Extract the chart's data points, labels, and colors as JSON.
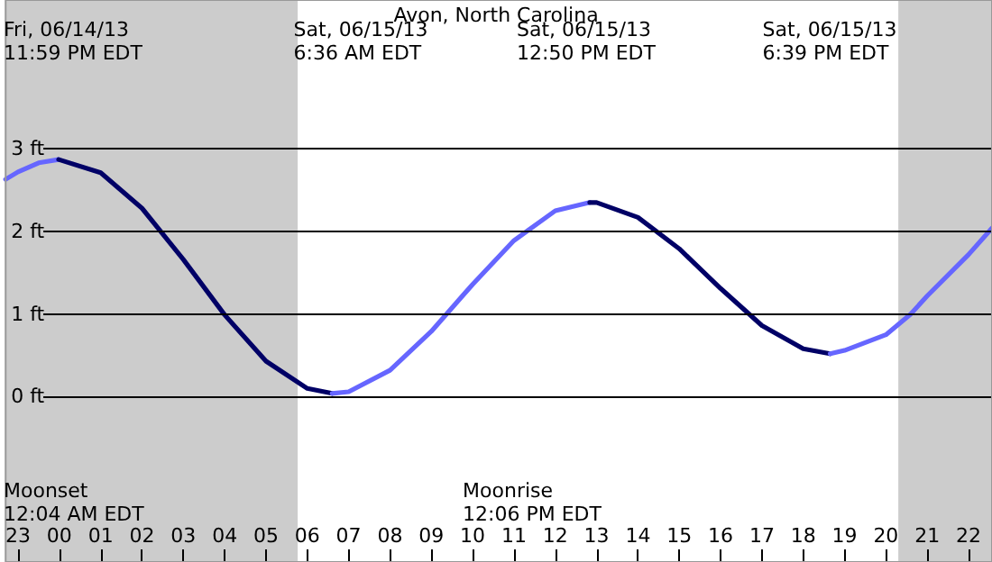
{
  "chart_data": {
    "type": "line",
    "title": "Avon, North Carolina",
    "xlim": [
      "--06-14T22:42",
      "--06-15T22:34"
    ],
    "ylim": [
      -2,
      4.8
    ],
    "xticks": [
      {
        "value": "--06-14T23:00",
        "label": "23"
      },
      {
        "value": "--06-15T00:00",
        "label": "00"
      },
      {
        "value": "--06-15T01:00",
        "label": "01"
      },
      {
        "value": "--06-15T02:00",
        "label": "02"
      },
      {
        "value": "--06-15T03:00",
        "label": "03"
      },
      {
        "value": "--06-15T04:00",
        "label": "04"
      },
      {
        "value": "--06-15T05:00",
        "label": "05"
      },
      {
        "value": "--06-15T06:00",
        "label": "06"
      },
      {
        "value": "--06-15T07:00",
        "label": "07"
      },
      {
        "value": "--06-15T08:00",
        "label": "08"
      },
      {
        "value": "--06-15T09:00",
        "label": "09"
      },
      {
        "value": "--06-15T10:00",
        "label": "10"
      },
      {
        "value": "--06-15T11:00",
        "label": "11"
      },
      {
        "value": "--06-15T12:00",
        "label": "12"
      },
      {
        "value": "--06-15T13:00",
        "label": "13"
      },
      {
        "value": "--06-15T14:00",
        "label": "14"
      },
      {
        "value": "--06-15T15:00",
        "label": "15"
      },
      {
        "value": "--06-15T16:00",
        "label": "16"
      },
      {
        "value": "--06-15T17:00",
        "label": "17"
      },
      {
        "value": "--06-15T18:00",
        "label": "18"
      },
      {
        "value": "--06-15T19:00",
        "label": "19"
      },
      {
        "value": "--06-15T20:00",
        "label": "20"
      },
      {
        "value": "--06-15T21:00",
        "label": "21"
      },
      {
        "value": "--06-15T22:00",
        "label": "22"
      }
    ],
    "yticks": [
      {
        "value": 0,
        "label": "0 ft"
      },
      {
        "value": 1,
        "label": "1 ft"
      },
      {
        "value": 2,
        "label": "2 ft"
      },
      {
        "value": 3,
        "label": "3 ft"
      }
    ],
    "grid": "y",
    "marker": "none",
    "line_style": "solid",
    "series": [
      {
        "color": "#6666ff",
        "x": [
          "--06-14T22:42",
          "--06-14T23:00",
          "--06-14T23:30",
          "--06-14T23:59"
        ],
        "values": [
          2.63,
          2.72,
          2.83,
          2.87
        ]
      },
      {
        "color": "#000066",
        "x": [
          "--06-14T23:59",
          "--06-15T01:00",
          "--06-15T02:00",
          "--06-15T03:00",
          "--06-15T04:00",
          "--06-15T05:00",
          "--06-15T06:00",
          "--06-15T06:36"
        ],
        "values": [
          2.87,
          2.71,
          2.28,
          1.66,
          0.99,
          0.43,
          0.1,
          0.04
        ]
      },
      {
        "color": "#6666ff",
        "x": [
          "--06-15T06:36",
          "--06-15T07:00",
          "--06-15T08:00",
          "--06-15T09:00",
          "--06-15T10:00",
          "--06-15T11:00",
          "--06-15T12:00",
          "--06-15T12:50"
        ],
        "values": [
          0.04,
          0.06,
          0.32,
          0.79,
          1.36,
          1.89,
          2.25,
          2.35
        ]
      },
      {
        "color": "#000066",
        "x": [
          "--06-15T12:50",
          "--06-15T13:00",
          "--06-15T14:00",
          "--06-15T15:00",
          "--06-15T16:00",
          "--06-15T17:00",
          "--06-15T18:00",
          "--06-15T18:39"
        ],
        "values": [
          2.35,
          2.35,
          2.17,
          1.79,
          1.31,
          0.86,
          0.58,
          0.52
        ]
      },
      {
        "color": "#6666ff",
        "x": [
          "--06-15T18:39",
          "--06-15T19:00",
          "--06-15T20:00",
          "--06-15T20:36",
          "--06-15T21:00",
          "--06-15T22:00",
          "--06-15T22:34"
        ],
        "values": [
          0.52,
          0.56,
          0.75,
          1.0,
          1.22,
          1.72,
          2.04
        ]
      }
    ],
    "bands": [
      {
        "axis": "x",
        "from": "--06-14T22:42",
        "to": "--06-15T05:46",
        "color": "#cccccc"
      },
      {
        "axis": "x",
        "from": "--06-15T20:18",
        "to": "--06-15T22:34",
        "color": "#cccccc"
      }
    ],
    "annotations": [
      "Fri, 06/14/13\n11:59 PM EDT",
      "Sat, 06/15/13\n6:36 AM EDT",
      "Sat, 06/15/13\n12:50 PM EDT",
      "Sat, 06/15/13\n6:39 PM EDT",
      "Moonset\n12:04 AM EDT",
      "Moonrise\n12:06 PM EDT"
    ]
  }
}
